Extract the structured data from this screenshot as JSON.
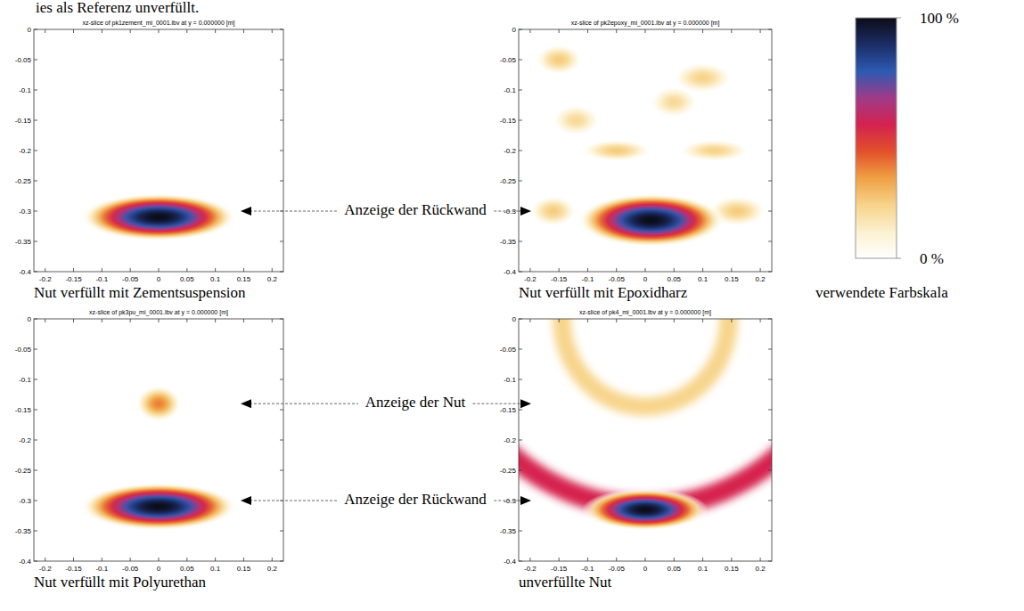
{
  "text_above": "ies als Referenz unverfüllt.",
  "chart_data": [
    {
      "type": "heatmap",
      "title": "xz-slice of pk1zement_mi_0001.lbv at y = 0.000000 [m]",
      "caption": "Nut verfüllt mit Zementsuspension",
      "xlim": [
        -0.22,
        0.22
      ],
      "ylim": [
        -0.4,
        0
      ],
      "xticks": [
        -0.2,
        -0.15,
        -0.1,
        -0.05,
        0,
        0.05,
        0.1,
        0.15,
        0.2
      ],
      "yticks": [
        0,
        -0.05,
        -0.1,
        -0.15,
        -0.2,
        -0.25,
        -0.3,
        -0.35,
        -0.4
      ],
      "arcs": [],
      "reflections": [
        {
          "x": 0,
          "z": -0.31,
          "rx": 0.14,
          "rz": 0.04,
          "amplitude": 100
        }
      ]
    },
    {
      "type": "heatmap",
      "title": "xz-slice of pk2epoxy_mi_0001.lbv at y = 0.000000 [m]",
      "caption": "Nut verfüllt mit Epoxidharz",
      "xlim": [
        -0.22,
        0.22
      ],
      "ylim": [
        -0.4,
        0
      ],
      "xticks": [
        -0.2,
        -0.15,
        -0.1,
        -0.05,
        0,
        0.05,
        0.1,
        0.15,
        0.2
      ],
      "yticks": [
        0,
        -0.05,
        -0.1,
        -0.15,
        -0.2,
        -0.25,
        -0.3,
        -0.35,
        -0.4
      ],
      "arcs": [],
      "reflections": [
        {
          "x": -0.15,
          "z": -0.05,
          "rx": 0.04,
          "rz": 0.025,
          "amplitude": 24
        },
        {
          "x": 0.1,
          "z": -0.08,
          "rx": 0.05,
          "rz": 0.025,
          "amplitude": 22
        },
        {
          "x": -0.05,
          "z": -0.2,
          "rx": 0.06,
          "rz": 0.018,
          "amplitude": 24
        },
        {
          "x": 0.12,
          "z": -0.2,
          "rx": 0.06,
          "rz": 0.018,
          "amplitude": 22
        },
        {
          "x": 0.05,
          "z": -0.12,
          "rx": 0.04,
          "rz": 0.025,
          "amplitude": 20
        },
        {
          "x": -0.12,
          "z": -0.15,
          "rx": 0.04,
          "rz": 0.025,
          "amplitude": 20
        },
        {
          "x": 0.16,
          "z": -0.3,
          "rx": 0.05,
          "rz": 0.025,
          "amplitude": 24
        },
        {
          "x": -0.16,
          "z": -0.3,
          "rx": 0.04,
          "rz": 0.025,
          "amplitude": 24
        },
        {
          "x": 0.01,
          "z": -0.315,
          "rx": 0.13,
          "rz": 0.045,
          "amplitude": 100
        }
      ]
    },
    {
      "type": "heatmap",
      "title": "xz-slice of pk3pu_mi_0001.lbv at y = 0.000000 [m]",
      "caption": "Nut verfüllt mit Polyurethan",
      "xlim": [
        -0.22,
        0.22
      ],
      "ylim": [
        -0.4,
        0
      ],
      "xticks": [
        -0.2,
        -0.15,
        -0.1,
        -0.05,
        0,
        0.05,
        0.1,
        0.15,
        0.2
      ],
      "yticks": [
        0,
        -0.05,
        -0.1,
        -0.15,
        -0.2,
        -0.25,
        -0.3,
        -0.35,
        -0.4
      ],
      "arcs": [],
      "reflections": [
        {
          "x": 0,
          "z": -0.14,
          "rx": 0.04,
          "rz": 0.03,
          "amplitude": 38
        },
        {
          "x": 0,
          "z": -0.31,
          "rx": 0.14,
          "rz": 0.04,
          "amplitude": 100
        }
      ]
    },
    {
      "type": "heatmap",
      "title": "xz-slice of pk4_mi_0001.lbv at y = 0.000000 [m]",
      "caption": "unverfüllte Nut",
      "xlim": [
        -0.22,
        0.22
      ],
      "ylim": [
        -0.4,
        0
      ],
      "xticks": [
        -0.2,
        -0.15,
        -0.1,
        -0.05,
        0,
        0.05,
        0.1,
        0.15,
        0.2
      ],
      "yticks": [
        0,
        -0.05,
        -0.1,
        -0.15,
        -0.2,
        -0.25,
        -0.3,
        -0.35,
        -0.4
      ],
      "arcs": [
        {
          "x": 0,
          "z": 0.0,
          "r": 0.145,
          "width": 0.03,
          "amplitude": 22
        },
        {
          "x": 0,
          "z": 0.053,
          "r": 0.363,
          "width": 0.035,
          "amplitude": 55
        }
      ],
      "reflections": [
        {
          "x": 0,
          "z": -0.315,
          "rx": 0.11,
          "rz": 0.035,
          "amplitude": 100
        }
      ]
    }
  ],
  "colorbar": {
    "title": "verwendete Farbskala",
    "range": [
      0,
      100
    ],
    "ticks": [
      {
        "value": 100,
        "label": "100 %"
      },
      {
        "value": 0,
        "label": "0 %"
      }
    ],
    "colors": [
      "#ffffff",
      "#fcf0cf",
      "#f7d38a",
      "#f0a044",
      "#e2502a",
      "#d42250",
      "#a03a88",
      "#2c5ab2",
      "#1c2d66",
      "#0c0c18"
    ]
  },
  "annotations": [
    {
      "text": "Anzeige der Rückwand",
      "z": -0.3,
      "targets": [
        0,
        1
      ]
    },
    {
      "text": "Anzeige der Nut",
      "z": -0.14,
      "targets": [
        2,
        3
      ]
    },
    {
      "text": "Anzeige der Rückwand",
      "z": -0.3,
      "targets": [
        2,
        3
      ]
    }
  ]
}
